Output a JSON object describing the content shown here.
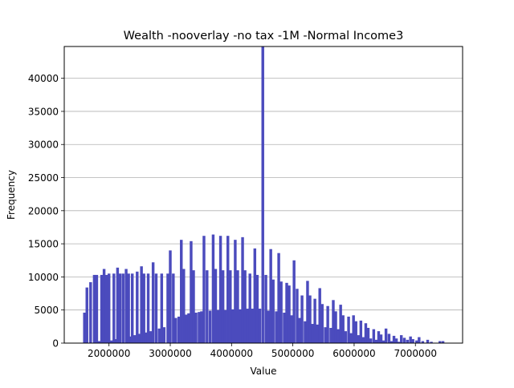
{
  "chart_data": {
    "type": "histogram",
    "title": "Wealth -nooverlay -no tax -1M -Normal Income3",
    "xlabel": "Value",
    "ylabel": "Frequency",
    "xlim": [
      1270000,
      7770000
    ],
    "ylim": [
      0,
      44800
    ],
    "xticks": [
      2000000,
      3000000,
      4000000,
      5000000,
      6000000,
      7000000
    ],
    "xtick_labels": [
      "2000000",
      "3000000",
      "4000000",
      "5000000",
      "6000000",
      "7000000"
    ],
    "yticks": [
      0,
      5000,
      10000,
      15000,
      20000,
      25000,
      30000,
      35000,
      40000
    ],
    "ytick_labels": [
      "0",
      "5000",
      "10000",
      "15000",
      "20000",
      "25000",
      "30000",
      "35000",
      "40000"
    ],
    "grid": "horizontal",
    "bar_color": "#4b4bbd",
    "bin_width": 45000,
    "bins": [
      [
        1600000,
        4600
      ],
      [
        1640000,
        8400
      ],
      [
        1700000,
        9200
      ],
      [
        1760000,
        10300
      ],
      [
        1800000,
        10300
      ],
      [
        1840000,
        300
      ],
      [
        1880000,
        10300
      ],
      [
        1920000,
        11200
      ],
      [
        1960000,
        10300
      ],
      [
        2000000,
        10500
      ],
      [
        2040000,
        400
      ],
      [
        2080000,
        10500
      ],
      [
        2120000,
        600
      ],
      [
        2140000,
        11400
      ],
      [
        2180000,
        10500
      ],
      [
        2230000,
        10500
      ],
      [
        2280000,
        11200
      ],
      [
        2320000,
        10500
      ],
      [
        2350000,
        1000
      ],
      [
        2380000,
        10500
      ],
      [
        2420000,
        1200
      ],
      [
        2460000,
        10800
      ],
      [
        2500000,
        1400
      ],
      [
        2530000,
        11600
      ],
      [
        2570000,
        10500
      ],
      [
        2600000,
        1600
      ],
      [
        2640000,
        10500
      ],
      [
        2680000,
        1800
      ],
      [
        2720000,
        12200
      ],
      [
        2770000,
        10500
      ],
      [
        2820000,
        2200
      ],
      [
        2860000,
        10500
      ],
      [
        2900000,
        2400
      ],
      [
        2960000,
        10500
      ],
      [
        3000000,
        14000
      ],
      [
        3050000,
        10500
      ],
      [
        3090000,
        3800
      ],
      [
        3140000,
        4000
      ],
      [
        3180000,
        15600
      ],
      [
        3220000,
        11200
      ],
      [
        3260000,
        4300
      ],
      [
        3300000,
        4500
      ],
      [
        3340000,
        15400
      ],
      [
        3380000,
        11000
      ],
      [
        3420000,
        4600
      ],
      [
        3470000,
        4700
      ],
      [
        3510000,
        4800
      ],
      [
        3550000,
        16200
      ],
      [
        3600000,
        11000
      ],
      [
        3650000,
        4900
      ],
      [
        3700000,
        16400
      ],
      [
        3740000,
        11200
      ],
      [
        3780000,
        5000
      ],
      [
        3820000,
        16200
      ],
      [
        3860000,
        11000
      ],
      [
        3900000,
        5000
      ],
      [
        3940000,
        16200
      ],
      [
        3980000,
        11000
      ],
      [
        4020000,
        5100
      ],
      [
        4060000,
        15600
      ],
      [
        4100000,
        11000
      ],
      [
        4140000,
        5100
      ],
      [
        4180000,
        16000
      ],
      [
        4220000,
        11000
      ],
      [
        4260000,
        5200
      ],
      [
        4300000,
        10500
      ],
      [
        4340000,
        5200
      ],
      [
        4380000,
        14300
      ],
      [
        4420000,
        10300
      ],
      [
        4460000,
        5200
      ],
      [
        4510000,
        44800
      ],
      [
        4560000,
        10300
      ],
      [
        4600000,
        4900
      ],
      [
        4640000,
        14200
      ],
      [
        4680000,
        9600
      ],
      [
        4730000,
        4800
      ],
      [
        4770000,
        13600
      ],
      [
        4810000,
        9300
      ],
      [
        4860000,
        4600
      ],
      [
        4900000,
        9100
      ],
      [
        4940000,
        8700
      ],
      [
        4980000,
        4200
      ],
      [
        5020000,
        12500
      ],
      [
        5070000,
        8200
      ],
      [
        5110000,
        3800
      ],
      [
        5150000,
        7200
      ],
      [
        5200000,
        3300
      ],
      [
        5240000,
        9400
      ],
      [
        5280000,
        7200
      ],
      [
        5320000,
        2900
      ],
      [
        5360000,
        6700
      ],
      [
        5400000,
        2800
      ],
      [
        5440000,
        8300
      ],
      [
        5480000,
        5900
      ],
      [
        5530000,
        2400
      ],
      [
        5570000,
        5600
      ],
      [
        5620000,
        2300
      ],
      [
        5660000,
        6500
      ],
      [
        5700000,
        4800
      ],
      [
        5740000,
        2100
      ],
      [
        5780000,
        5800
      ],
      [
        5820000,
        4200
      ],
      [
        5860000,
        1800
      ],
      [
        5910000,
        4000
      ],
      [
        5950000,
        1500
      ],
      [
        5990000,
        4200
      ],
      [
        6030000,
        3300
      ],
      [
        6070000,
        1200
      ],
      [
        6110000,
        3400
      ],
      [
        6150000,
        900
      ],
      [
        6190000,
        3000
      ],
      [
        6230000,
        2300
      ],
      [
        6270000,
        700
      ],
      [
        6320000,
        2100
      ],
      [
        6360000,
        500
      ],
      [
        6400000,
        1800
      ],
      [
        6440000,
        1300
      ],
      [
        6480000,
        400
      ],
      [
        6520000,
        2200
      ],
      [
        6570000,
        1400
      ],
      [
        6610000,
        300
      ],
      [
        6650000,
        1100
      ],
      [
        6690000,
        700
      ],
      [
        6730000,
        200
      ],
      [
        6770000,
        1200
      ],
      [
        6820000,
        800
      ],
      [
        6870000,
        500
      ],
      [
        6920000,
        1000
      ],
      [
        6960000,
        600
      ],
      [
        7020000,
        400
      ],
      [
        7060000,
        900
      ],
      [
        7120000,
        300
      ],
      [
        7200000,
        500
      ],
      [
        7260000,
        200
      ],
      [
        7400000,
        300
      ],
      [
        7450000,
        300
      ]
    ]
  }
}
